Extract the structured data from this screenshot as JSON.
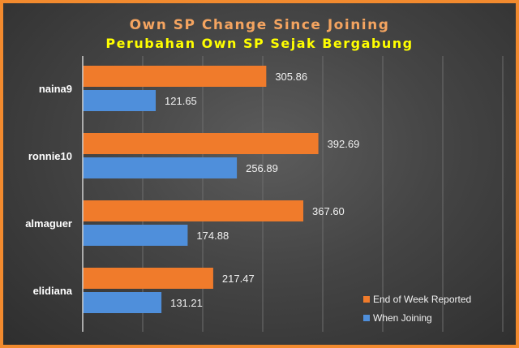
{
  "chart_data": {
    "type": "bar",
    "orientation": "horizontal",
    "title": "Own SP Change Since Joining",
    "subtitle": "Perubahan Own SP Sejak Bergabung",
    "categories": [
      "naina9",
      "ronnie10",
      "almaguer",
      "elidiana"
    ],
    "series": [
      {
        "name": "End of Week Reported",
        "values": [
          305.86,
          392.69,
          367.6,
          217.47
        ],
        "color": "#f07b2b"
      },
      {
        "name": "When Joining",
        "values": [
          121.65,
          256.89,
          174.88,
          131.21
        ],
        "color": "#4f8fdb"
      }
    ],
    "xlim": [
      0,
      700
    ],
    "grid": true,
    "legend_position": "bottom-right",
    "title_color": "#f4a460",
    "subtitle_color": "#ffff00"
  }
}
